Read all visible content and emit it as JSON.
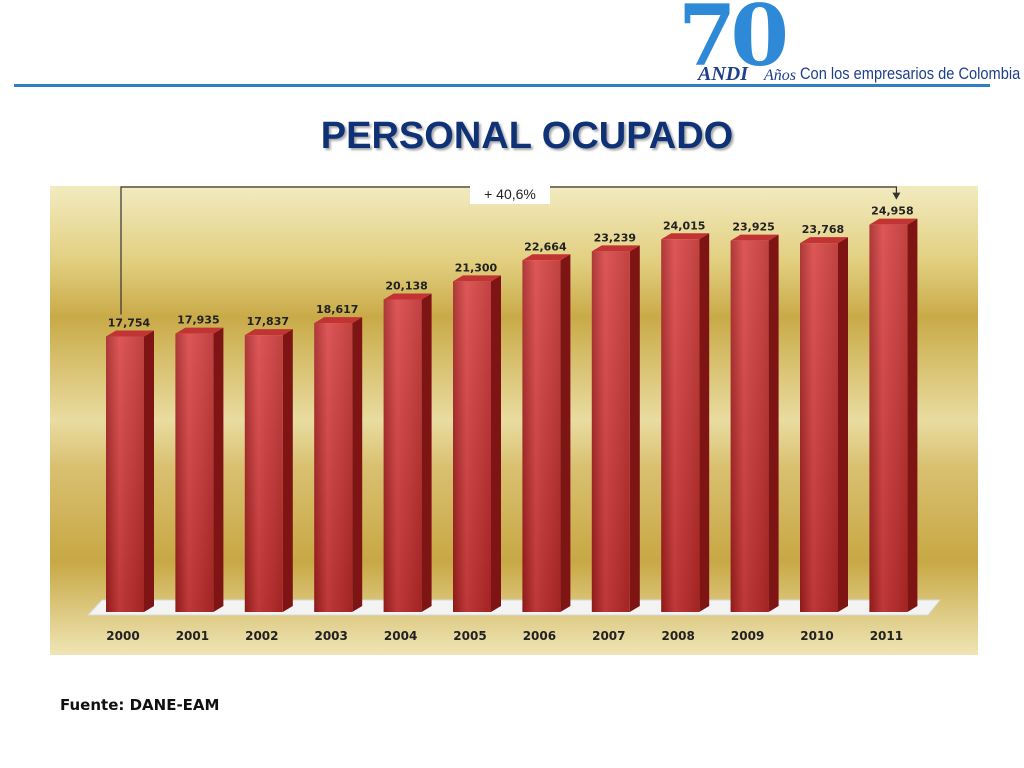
{
  "logo": {
    "number": "70",
    "brand": "ANDI",
    "years_word": "Años",
    "tagline": "Con los empresarios de Colombia"
  },
  "title": "PERSONAL OCUPADO",
  "source": "Fuente: DANE-EAM",
  "colors": {
    "bar": "#c83030",
    "header_line": "#2f7fc1",
    "title": "#0f3277"
  },
  "chart_data": {
    "type": "bar",
    "title": "",
    "xlabel": "",
    "ylabel": "",
    "categories": [
      "2000",
      "2001",
      "2002",
      "2003",
      "2004",
      "2005",
      "2006",
      "2007",
      "2008",
      "2009",
      "2010",
      "2011"
    ],
    "values": [
      17754,
      17935,
      17837,
      18617,
      20138,
      21300,
      22664,
      23239,
      24015,
      23925,
      23768,
      24958
    ],
    "data_labels": [
      "17,754",
      "17,935",
      "17,837",
      "18,617",
      "20,138",
      "21,300",
      "22,664",
      "23,239",
      "24,015",
      "23,925",
      "23,768",
      "24,958"
    ],
    "annotation": "+ 40,6%",
    "ylim": [
      0,
      25000
    ],
    "grid": false,
    "legend": "none"
  }
}
